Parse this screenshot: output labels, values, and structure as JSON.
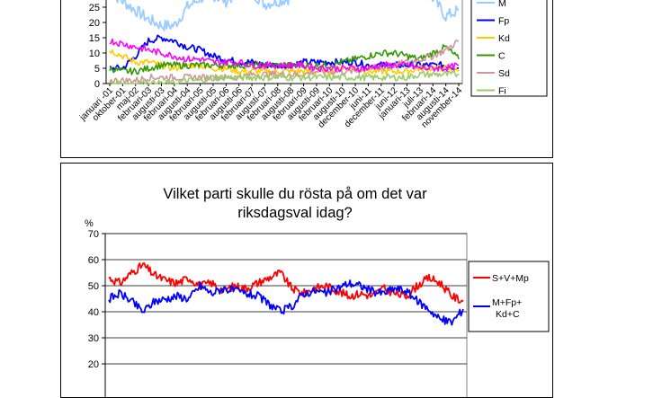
{
  "colors": {
    "S": "#ff00ff",
    "M": "#99ccff",
    "Fp": "#0000ff",
    "Kd": "#ffcc00",
    "C": "#339900",
    "Sd": "#cc9999",
    "Fi": "#99cc66",
    "V": "#008000",
    "red": "#ff0000",
    "blue": "#0000ff"
  },
  "chart_data": [
    {
      "type": "line",
      "title": "",
      "ylabel": "",
      "ylim": [
        0,
        30
      ],
      "yticks": [
        "0",
        "5",
        "10",
        "15",
        "20",
        "25"
      ],
      "xticks": [
        "januari -01",
        "oktober-01",
        "maj-02",
        "februari-03",
        "augusti-03",
        "februari-04",
        "augusti-04",
        "februari-05",
        "augusti-05",
        "februari-06",
        "augusti-06",
        "februari-07",
        "augusti-07",
        "februari-08",
        "augusti-08",
        "februari-09",
        "augusti-09",
        "februari-10",
        "augusti-10",
        "december-10",
        "juni-11",
        "december-11",
        "juni-12",
        "januari-13",
        "juli-13",
        "februari-14",
        "augusti-14",
        "november-14"
      ],
      "legend": [
        "M",
        "Fp",
        "Kd",
        "C",
        "Sd",
        "Fi"
      ],
      "series": [
        {
          "name": "M",
          "color": "#99ccff",
          "values": [
            30,
            27,
            24,
            21,
            19,
            19,
            25,
            28,
            29,
            27,
            30,
            30,
            26,
            27,
            28,
            30,
            30,
            30,
            30,
            30,
            30,
            30,
            30,
            30,
            30,
            28,
            22,
            24
          ]
        },
        {
          "name": "Fp",
          "color": "#0000ff",
          "values": [
            5,
            5,
            9,
            14,
            15,
            14,
            12,
            11,
            9,
            8,
            7,
            7,
            6,
            6,
            6,
            7,
            7,
            7,
            7,
            7,
            6,
            6,
            6,
            6,
            6,
            6,
            6,
            5
          ]
        },
        {
          "name": "Kd",
          "color": "#ffcc00",
          "values": [
            11,
            9,
            7,
            7,
            6,
            5,
            6,
            6,
            5,
            5,
            4,
            4,
            4,
            4,
            4,
            4,
            4,
            4,
            5,
            5,
            4,
            4,
            4,
            4,
            5,
            5,
            5,
            4
          ]
        },
        {
          "name": "C",
          "color": "#339900",
          "values": [
            5,
            4,
            4,
            5,
            6,
            6,
            6,
            6,
            6,
            6,
            6,
            6,
            6,
            6,
            6,
            6,
            6,
            6,
            7,
            8,
            9,
            10,
            10,
            9,
            8,
            10,
            12,
            8
          ]
        },
        {
          "name": "Sd",
          "color": "#cc9999",
          "values": [
            1,
            1,
            1,
            2,
            2,
            2,
            2,
            2,
            2,
            2,
            2,
            3,
            3,
            3,
            3,
            3,
            4,
            4,
            4,
            4,
            5,
            5,
            6,
            7,
            8,
            9,
            11,
            14
          ]
        },
        {
          "name": "Fi",
          "color": "#99cc66",
          "values": [
            0,
            0,
            0,
            0,
            0,
            0,
            1,
            1,
            2,
            2,
            2,
            2,
            2,
            2,
            2,
            2,
            2,
            2,
            2,
            2,
            2,
            2,
            2,
            2,
            3,
            3,
            3,
            3
          ]
        },
        {
          "name": "",
          "color": "#ff00ff",
          "values": [
            14,
            13,
            12,
            11,
            10,
            9,
            8,
            8,
            7,
            7,
            7,
            6,
            6,
            6,
            6,
            6,
            5,
            5,
            5,
            5,
            5,
            6,
            6,
            6,
            5,
            5,
            5,
            6
          ]
        }
      ]
    },
    {
      "type": "line",
      "title": "Vilket parti skulle du rösta på om det var riksdagsval idag?",
      "title_lines": [
        "Vilket parti skulle du rösta på om det var",
        "riksdagsval idag?"
      ],
      "ylabel": "%",
      "ylim": [
        20,
        70
      ],
      "yticks": [
        "70",
        "60",
        "50",
        "40",
        "30",
        "20"
      ],
      "legend": [
        "S+V+Mp",
        "M+Fp+ Kd+C"
      ],
      "series": [
        {
          "name": "S+V+Mp",
          "color": "#ff0000",
          "values": [
            53,
            51,
            55,
            58,
            54,
            52,
            51,
            53,
            50,
            51,
            48,
            50,
            49,
            51,
            53,
            55,
            49,
            47,
            49,
            50,
            48,
            46,
            47,
            46,
            49,
            47,
            46,
            50,
            53,
            51,
            46,
            44
          ]
        },
        {
          "name": "M+Fp+ Kd+C",
          "color": "#0000ff",
          "values": [
            45,
            47,
            44,
            40,
            44,
            45,
            46,
            45,
            50,
            47,
            49,
            48,
            47,
            46,
            43,
            40,
            42,
            47,
            48,
            47,
            49,
            51,
            50,
            48,
            47,
            49,
            48,
            44,
            41,
            37,
            36,
            41
          ]
        }
      ]
    }
  ]
}
